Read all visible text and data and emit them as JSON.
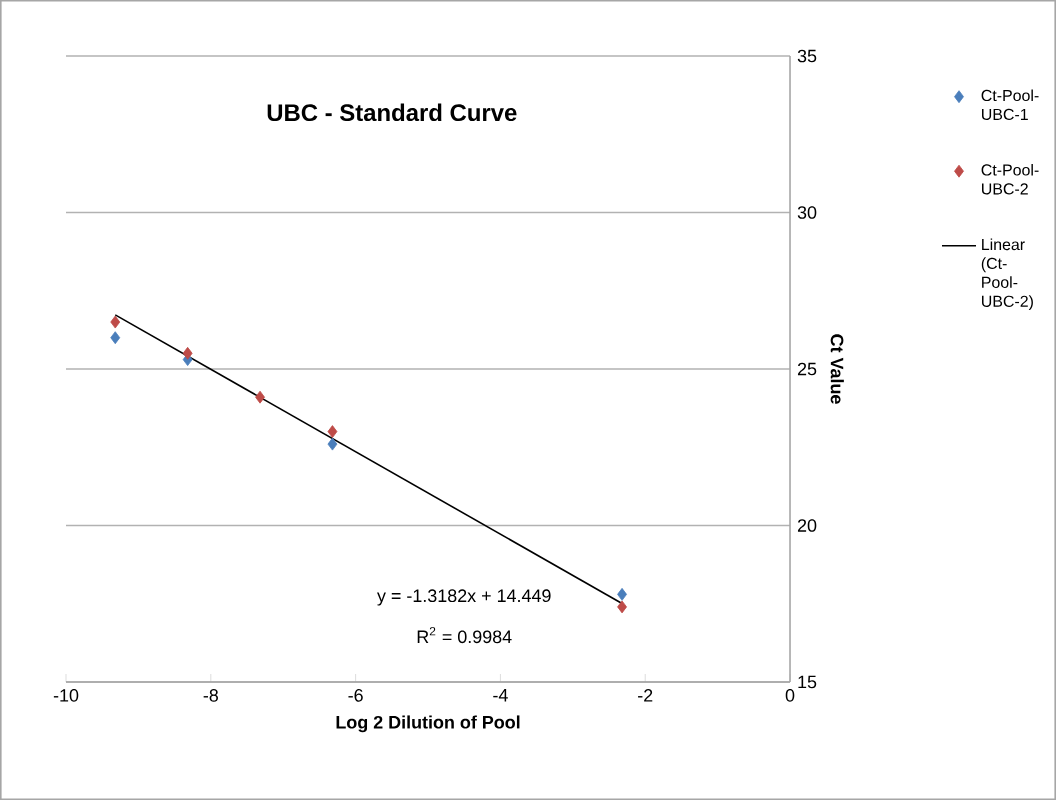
{
  "chart_data": {
    "type": "scatter",
    "title": "UBC - Standard Curve",
    "xlabel": "Log 2 Dilution of Pool",
    "ylabel": "Ct Value",
    "x": [
      -9.32,
      -8.32,
      -7.32,
      -6.32,
      -2.32
    ],
    "series": [
      {
        "name": "Ct-Pool-UBC-1",
        "color": "#4a7ebb",
        "values": [
          26.0,
          25.3,
          null,
          22.6,
          17.8
        ]
      },
      {
        "name": "Ct-Pool-UBC-2",
        "color": "#be4b48",
        "values": [
          26.5,
          25.5,
          24.1,
          23.0,
          17.4
        ]
      },
      {
        "name": "Linear (Ct-Pool-UBC-2)",
        "type": "line",
        "color": "#000000",
        "line_style": "solid",
        "marker": "none",
        "x": [
          -9.32,
          -2.32
        ],
        "values": [
          26.73,
          17.51
        ]
      }
    ],
    "annotations": [
      "y = -1.3182x + 14.449",
      "R$^{2}$ = 0.9984"
    ],
    "xlim": [
      -10,
      0
    ],
    "ylim": [
      15,
      35
    ],
    "xticks": [
      -10,
      -8,
      -6,
      -4,
      -2,
      0
    ],
    "yticks": [
      15,
      20,
      25,
      30,
      35
    ],
    "grid": "y",
    "legend": "right",
    "marker": "diamond"
  }
}
